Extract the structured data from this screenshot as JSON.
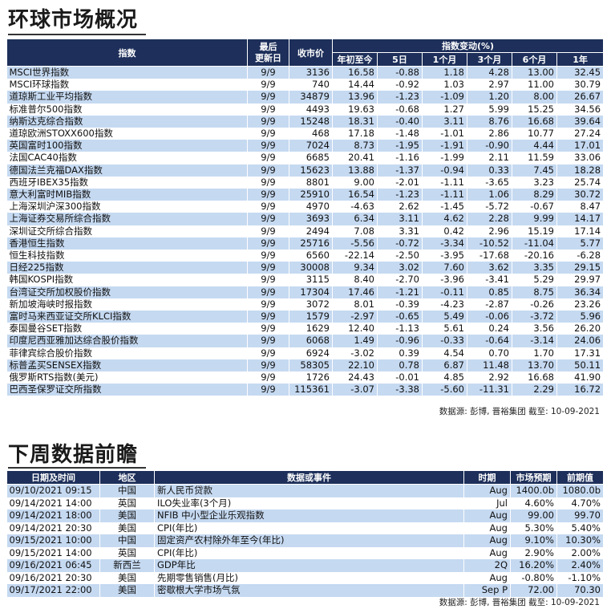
{
  "section1": {
    "title": "环球市场概况",
    "headers": {
      "index": "指数",
      "last_update_l1": "最后",
      "last_update_l2": "更新日",
      "close": "收市价",
      "change_group": "指数变动(%)",
      "ytd": "年初至今",
      "d5": "5日",
      "m1": "1个月",
      "m3": "3个月",
      "m6": "6个月",
      "y1": "1年"
    },
    "rows": [
      {
        "name": "MSCI世界指数",
        "date": "9/9",
        "close": "3136",
        "ytd": "16.58",
        "d5": "-0.88",
        "m1": "1.18",
        "m3": "4.28",
        "m6": "13.00",
        "y1": "32.45"
      },
      {
        "name": "MSCI环球指数",
        "date": "9/9",
        "close": "740",
        "ytd": "14.44",
        "d5": "-0.92",
        "m1": "1.03",
        "m3": "2.97",
        "m6": "11.00",
        "y1": "30.79"
      },
      {
        "name": "道琼斯工业平均指数",
        "date": "9/9",
        "close": "34879",
        "ytd": "13.96",
        "d5": "-1.23",
        "m1": "-1.09",
        "m3": "1.20",
        "m6": "8.00",
        "y1": "26.67"
      },
      {
        "name": "标准普尔500指数",
        "date": "9/9",
        "close": "4493",
        "ytd": "19.63",
        "d5": "-0.68",
        "m1": "1.27",
        "m3": "5.99",
        "m6": "15.25",
        "y1": "34.56"
      },
      {
        "name": "纳斯达克综合指数",
        "date": "9/9",
        "close": "15248",
        "ytd": "18.31",
        "d5": "-0.40",
        "m1": "3.11",
        "m3": "8.76",
        "m6": "16.68",
        "y1": "39.64"
      },
      {
        "name": "道琼欧洲STOXX600指数",
        "date": "9/9",
        "close": "468",
        "ytd": "17.18",
        "d5": "-1.48",
        "m1": "-1.01",
        "m3": "2.86",
        "m6": "10.77",
        "y1": "27.24"
      },
      {
        "name": "英国富时100指数",
        "date": "9/9",
        "close": "7024",
        "ytd": "8.73",
        "d5": "-1.95",
        "m1": "-1.91",
        "m3": "-0.90",
        "m6": "4.44",
        "y1": "17.01"
      },
      {
        "name": "法国CAC40指数",
        "date": "9/9",
        "close": "6685",
        "ytd": "20.41",
        "d5": "-1.16",
        "m1": "-1.99",
        "m3": "2.11",
        "m6": "11.59",
        "y1": "33.06"
      },
      {
        "name": "德国法兰克福DAX指数",
        "date": "9/9",
        "close": "15623",
        "ytd": "13.88",
        "d5": "-1.37",
        "m1": "-0.94",
        "m3": "0.33",
        "m6": "7.45",
        "y1": "18.28"
      },
      {
        "name": "西班牙IBEX35指数",
        "date": "9/9",
        "close": "8801",
        "ytd": "9.00",
        "d5": "-2.01",
        "m1": "-1.11",
        "m3": "-3.65",
        "m6": "3.23",
        "y1": "25.74"
      },
      {
        "name": "意大利富时MIB指数",
        "date": "9/9",
        "close": "25910",
        "ytd": "16.54",
        "d5": "-1.23",
        "m1": "-1.11",
        "m3": "1.06",
        "m6": "8.29",
        "y1": "30.72"
      },
      {
        "name": "上海深圳沪深300指数",
        "date": "9/9",
        "close": "4970",
        "ytd": "-4.63",
        "d5": "2.62",
        "m1": "-1.45",
        "m3": "-5.72",
        "m6": "-0.67",
        "y1": "8.47"
      },
      {
        "name": "上海证券交易所综合指数",
        "date": "9/9",
        "close": "3693",
        "ytd": "6.34",
        "d5": "3.11",
        "m1": "4.62",
        "m3": "2.28",
        "m6": "9.99",
        "y1": "14.17"
      },
      {
        "name": "深圳证交所综合指数",
        "date": "9/9",
        "close": "2494",
        "ytd": "7.08",
        "d5": "3.31",
        "m1": "0.42",
        "m3": "2.96",
        "m6": "15.19",
        "y1": "17.14"
      },
      {
        "name": "香港恒生指数",
        "date": "9/9",
        "close": "25716",
        "ytd": "-5.56",
        "d5": "-0.72",
        "m1": "-3.34",
        "m3": "-10.52",
        "m6": "-11.04",
        "y1": "5.77"
      },
      {
        "name": "恒生科技指数",
        "date": "9/9",
        "close": "6560",
        "ytd": "-22.14",
        "d5": "-2.50",
        "m1": "-3.95",
        "m3": "-17.68",
        "m6": "-20.16",
        "y1": "-6.28"
      },
      {
        "name": "日经225指数",
        "date": "9/9",
        "close": "30008",
        "ytd": "9.34",
        "d5": "3.02",
        "m1": "7.60",
        "m3": "3.62",
        "m6": "3.35",
        "y1": "29.15"
      },
      {
        "name": "韩国KOSPI指数",
        "date": "9/9",
        "close": "3115",
        "ytd": "8.40",
        "d5": "-2.70",
        "m1": "-3.96",
        "m3": "-3.41",
        "m6": "5.29",
        "y1": "29.97"
      },
      {
        "name": "台湾证交所加权股价指数",
        "date": "9/9",
        "close": "17304",
        "ytd": "17.46",
        "d5": "-1.21",
        "m1": "-0.11",
        "m3": "0.85",
        "m6": "8.75",
        "y1": "36.34"
      },
      {
        "name": "新加坡海峡时报指数",
        "date": "9/9",
        "close": "3072",
        "ytd": "8.01",
        "d5": "-0.39",
        "m1": "-4.23",
        "m3": "-2.87",
        "m6": "-0.26",
        "y1": "23.26"
      },
      {
        "name": "富时马来西亚证交所KLCI指数",
        "date": "9/9",
        "close": "1579",
        "ytd": "-2.97",
        "d5": "-0.65",
        "m1": "5.49",
        "m3": "-0.06",
        "m6": "-3.72",
        "y1": "5.96"
      },
      {
        "name": "泰国曼谷SET指数",
        "date": "9/9",
        "close": "1629",
        "ytd": "12.40",
        "d5": "-1.13",
        "m1": "5.61",
        "m3": "0.24",
        "m6": "3.56",
        "y1": "26.20"
      },
      {
        "name": "印度尼西亚雅加达综合股价指数",
        "date": "9/9",
        "close": "6068",
        "ytd": "1.49",
        "d5": "-0.96",
        "m1": "-0.33",
        "m3": "-0.64",
        "m6": "-3.14",
        "y1": "24.06"
      },
      {
        "name": "菲律宾综合股价指数",
        "date": "9/9",
        "close": "6924",
        "ytd": "-3.02",
        "d5": "0.39",
        "m1": "4.54",
        "m3": "0.70",
        "m6": "1.70",
        "y1": "17.31"
      },
      {
        "name": "标普孟买SENSEX指数",
        "date": "9/9",
        "close": "58305",
        "ytd": "22.10",
        "d5": "0.78",
        "m1": "6.87",
        "m3": "11.48",
        "m6": "13.70",
        "y1": "50.11"
      },
      {
        "name": "俄罗斯RTS指数(美元)",
        "date": "9/9",
        "close": "1726",
        "ytd": "24.43",
        "d5": "-0.01",
        "m1": "4.85",
        "m3": "2.92",
        "m6": "16.68",
        "y1": "41.90"
      },
      {
        "name": "巴西圣保罗证交所指数",
        "date": "9/9",
        "close": "115361",
        "ytd": "-3.07",
        "d5": "-3.38",
        "m1": "-5.60",
        "m3": "-11.31",
        "m6": "2.29",
        "y1": "16.72"
      }
    ],
    "source": "数据源: 彭博, 晋裕集团 截至: 10-09-2021"
  },
  "section2": {
    "title": "下周数据前瞻",
    "headers": {
      "datetime": "日期及时间",
      "region": "地区",
      "event": "数据或事件",
      "period": "时期",
      "forecast": "市场预期",
      "previous": "前期值"
    },
    "rows": [
      {
        "datetime": "09/10/2021 09:15",
        "region": "中国",
        "event": "新人民币贷款",
        "period": "Aug",
        "forecast": "1400.0b",
        "previous": "1080.0b"
      },
      {
        "datetime": "09/14/2021 14:00",
        "region": "英国",
        "event": "ILO失业率(3个月)",
        "period": "Jul",
        "forecast": "4.60%",
        "previous": "4.70%"
      },
      {
        "datetime": "09/14/2021 18:00",
        "region": "美国",
        "event": "NFIB 中小型企业乐观指数",
        "period": "Aug",
        "forecast": "99.00",
        "previous": "99.70"
      },
      {
        "datetime": "09/14/2021 20:30",
        "region": "美国",
        "event": "CPI(年比)",
        "period": "Aug",
        "forecast": "5.30%",
        "previous": "5.40%"
      },
      {
        "datetime": "09/15/2021 10:00",
        "region": "中国",
        "event": "固定资产农村除外年至今(年比)",
        "period": "Aug",
        "forecast": "9.10%",
        "previous": "10.30%"
      },
      {
        "datetime": "09/15/2021 14:00",
        "region": "英国",
        "event": "CPI(年比)",
        "period": "Aug",
        "forecast": "2.90%",
        "previous": "2.00%"
      },
      {
        "datetime": "09/16/2021 06:45",
        "region": "新西兰",
        "event": "GDP年比",
        "period": "2Q",
        "forecast": "16.20%",
        "previous": "2.40%"
      },
      {
        "datetime": "09/16/2021 20:30",
        "region": "美国",
        "event": "先期零售销售(月比)",
        "period": "Aug",
        "forecast": "-0.80%",
        "previous": "-1.10%"
      },
      {
        "datetime": "09/17/2021 22:00",
        "region": "美国",
        "event": "密歇根大学市场气氛",
        "period": "Sep P",
        "forecast": "72.00",
        "previous": "70.30"
      }
    ],
    "source": "数据源: 彭博, 晋裕集团 截至: 10-09-2021"
  }
}
